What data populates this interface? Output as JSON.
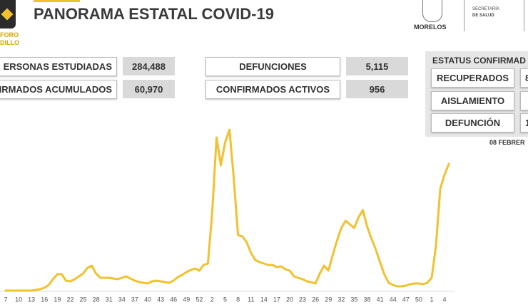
{
  "header": {
    "logo_lines": [
      "FORO",
      "DILLO"
    ],
    "title": "PANORAMA ESTATAL COVID-19",
    "state": "MORELOS",
    "secretaria_lines": [
      "SECRETARÍA",
      "DE SALUD"
    ]
  },
  "stats": [
    {
      "label": "ERSONAS ESTUDIADAS",
      "value": "284,488"
    },
    {
      "label": "NFIRMADOS ACUMULADOS",
      "value": "60,970"
    },
    {
      "label": "DEFUNCIONES",
      "value": "5,115"
    },
    {
      "label": "CONFIRMADOS ACTIVOS",
      "value": "956"
    }
  ],
  "status": {
    "title": "ESTATUS CONFIRMAD",
    "rows": [
      {
        "label": "RECUPERADOS",
        "value": "8"
      },
      {
        "label": "AISLAMIENTO"
      },
      {
        "label": "DEFUNCIÓN",
        "value": "1"
      }
    ]
  },
  "date": "08 FEBRER",
  "chart_data": {
    "type": "line",
    "color": "#f2c12e",
    "categories": [
      "7",
      null,
      null,
      "10",
      null,
      null,
      "13",
      null,
      null,
      "16",
      null,
      null,
      "19",
      null,
      null,
      "22",
      null,
      null,
      "25",
      null,
      null,
      "28",
      null,
      null,
      "31",
      null,
      null,
      "34",
      null,
      null,
      "37",
      null,
      null,
      "40",
      null,
      null,
      "43",
      null,
      null,
      "46",
      null,
      null,
      "49",
      null,
      null,
      "52",
      null,
      null,
      "2",
      null,
      null,
      "5",
      null,
      null,
      "8",
      null,
      null,
      "11",
      null,
      null,
      "14",
      null,
      null,
      "17",
      null,
      null,
      "20",
      null,
      null,
      "23",
      null,
      null,
      "26",
      null,
      null,
      "29",
      null,
      null,
      "32",
      null,
      null,
      "35",
      null,
      null,
      "38",
      null,
      null,
      "41",
      null,
      null,
      "44",
      null,
      null,
      "47",
      null,
      null,
      "50",
      null,
      null,
      "1",
      null,
      null,
      "4",
      null
    ],
    "values": [
      0,
      0,
      0,
      0,
      0,
      0,
      0,
      1,
      2,
      4,
      8,
      16,
      23,
      23,
      14,
      13,
      16,
      20,
      24,
      32,
      35,
      24,
      18,
      18,
      18,
      17,
      16,
      18,
      20,
      17,
      14,
      12,
      11,
      10,
      13,
      14,
      13,
      12,
      11,
      14,
      19,
      22,
      26,
      29,
      31,
      28,
      36,
      38,
      110,
      215,
      176,
      208,
      226,
      158,
      78,
      76,
      68,
      53,
      43,
      40,
      38,
      36,
      36,
      33,
      34,
      30,
      28,
      20,
      18,
      16,
      13,
      12,
      10,
      24,
      35,
      28,
      50,
      70,
      88,
      98,
      93,
      88,
      103,
      113,
      90,
      73,
      58,
      40,
      23,
      11,
      8,
      6,
      6,
      7,
      9,
      10,
      10,
      9,
      11,
      18,
      63,
      143,
      163,
      178
    ]
  }
}
